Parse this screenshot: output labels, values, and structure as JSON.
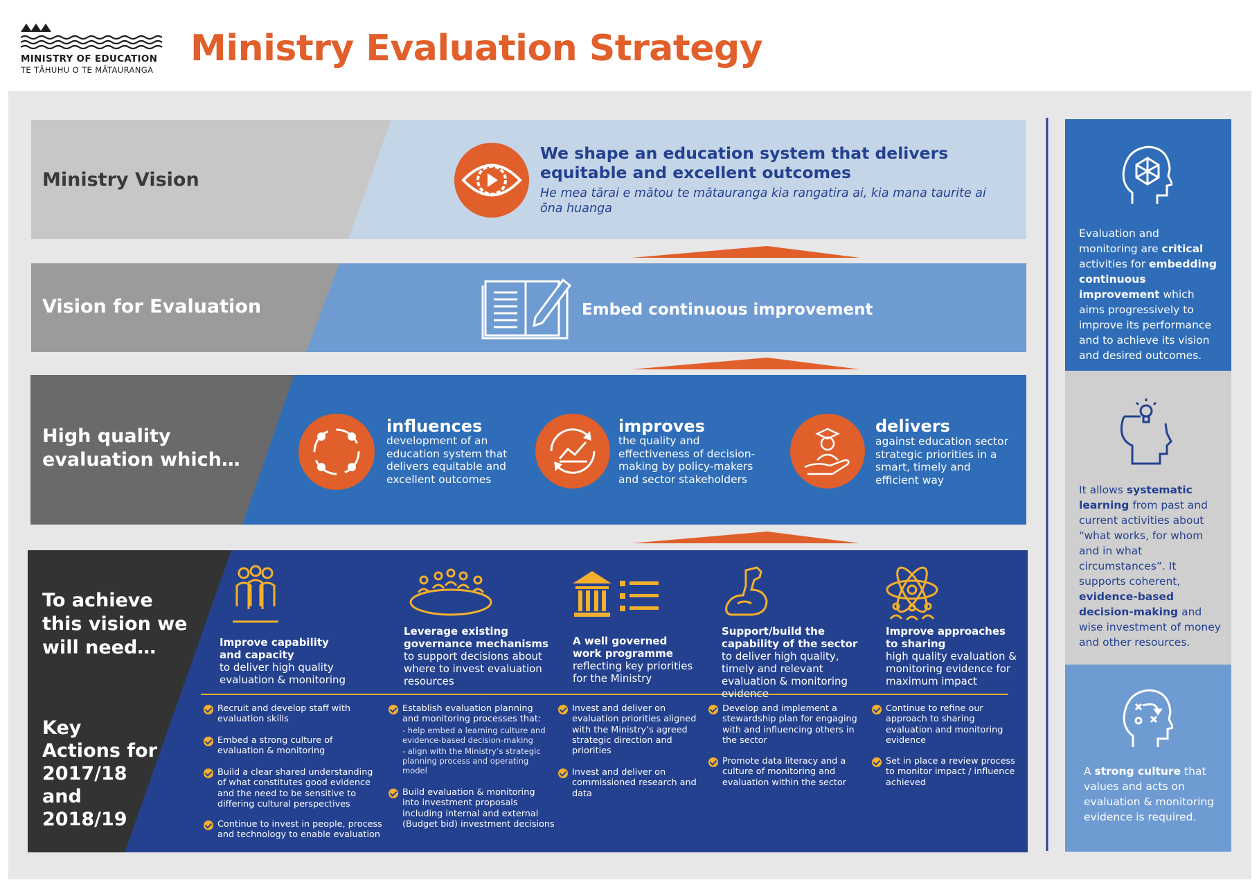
{
  "header": {
    "org_name": "MINISTRY OF EDUCATION",
    "org_name_maori": "TE TĀHUHU O TE MĀTAURANGA",
    "title": "Ministry Evaluation Strategy"
  },
  "colors": {
    "orange": "#e05f2a",
    "navy": "#24418f",
    "mid_blue": "#2f6db8",
    "light_blue": "#6f9bd3",
    "pale_blue": "#c5d5e8",
    "gold": "#f4b02c"
  },
  "rows": {
    "vision": {
      "label": "Ministry Vision",
      "icon": "eye-gear-icon",
      "text_en": "We shape an education system that delivers equitable and excellent outcomes",
      "text_mi": "He mea tārai e mātou te mātauranga kia rangatira ai, kia mana taurite ai ōna huanga"
    },
    "evaluation": {
      "label": "Vision for Evaluation",
      "icon": "open-book-pen-icon",
      "text": "Embed continuous improvement"
    },
    "quality": {
      "label_line1": "High quality",
      "label_line2": "evaluation which…",
      "items": [
        {
          "title": "influences",
          "desc": "development of an education system that delivers equitable and excellent outcomes",
          "icon": "cycle-icon"
        },
        {
          "title": "improves",
          "desc": "the quality and effectiveness of decision-making by policy-makers and sector stakeholders",
          "icon": "improvement-chart-icon"
        },
        {
          "title": "delivers",
          "desc": "against education sector strategic priorities in a smart, timely and efficient way",
          "icon": "graduate-hand-icon"
        }
      ]
    },
    "achieve": {
      "label_line1": "To achieve",
      "label_line2": "this vision we",
      "label_line3": "will need…",
      "actions_label_line1": "Key",
      "actions_label_line2": "Actions for",
      "actions_label_line3": "2017/18",
      "actions_label_line4": "and",
      "actions_label_line5": "2018/19",
      "pillars": [
        {
          "icon": "people-group-icon",
          "title_line1": "Improve capability",
          "title_line2": "and capacity",
          "desc": "to deliver high quality evaluation & monitoring",
          "actions": [
            "Recruit and develop staff with evaluation skills",
            "Embed a strong culture of evaluation & monitoring",
            "Build a clear shared understanding of what constitutes good evidence and the need to be sensitive to differing cultural perspectives",
            "Continue to invest in people, process and technology to enable evaluation"
          ]
        },
        {
          "icon": "meeting-table-icon",
          "title_line1": "Leverage existing",
          "title_line2": "governance mechanisms",
          "desc": "to support decisions about where to invest evaluation resources",
          "actions": [
            "Establish evaluation planning and monitoring processes that:",
            "Build evaluation & monitoring into investment proposals including internal and external (Budget bid) investment decisions"
          ],
          "sub_actions": [
            "- help embed a learning culture and evidence-based decision-making",
            "- align with the Ministry’s strategic planning process and operating model"
          ]
        },
        {
          "icon": "institution-list-icon",
          "title_line1": "A well governed",
          "title_line2": "work programme",
          "desc": "reflecting key priorities for the Ministry",
          "actions": [
            "Invest and deliver on evaluation priorities aligned with the Ministry’s agreed strategic direction and priorities",
            "Invest and deliver on commissioned research and data"
          ]
        },
        {
          "icon": "flexed-arm-icon",
          "title_line1": "Support/build the",
          "title_line2": "capability of the sector",
          "desc": "to deliver high quality, timely and relevant evaluation & monitoring evidence",
          "actions": [
            "Develop and implement a stewardship plan for engaging with and influencing others in the sector",
            "Promote data literacy and a culture of monitoring and evaluation within the sector"
          ]
        },
        {
          "icon": "atom-people-icon",
          "title_line1": "Improve approaches",
          "title_line2": "to sharing",
          "desc": "high quality evaluation & monitoring evidence for maximum impact",
          "actions": [
            "Continue to refine our approach to sharing evaluation and monitoring evidence",
            "Set in place a review process to monitor impact / influence achieved"
          ]
        }
      ]
    }
  },
  "sidebar": [
    {
      "icon": "head-network-icon",
      "parts": [
        {
          "t": "Evaluation and monitoring are ",
          "b": false
        },
        {
          "t": "critical",
          "b": true
        },
        {
          "t": " activities for ",
          "b": false
        },
        {
          "t": "embedding continuous improvement",
          "b": true
        },
        {
          "t": " which aims progressively to improve its performance and to achieve its vision and desired outcomes.",
          "b": false
        }
      ]
    },
    {
      "icon": "head-lightbulb-icon",
      "parts": [
        {
          "t": "It allows ",
          "b": false
        },
        {
          "t": "systematic learning",
          "b": true
        },
        {
          "t": " from past and current activities about “what works, for whom and in what circumstances”.  It supports coherent, ",
          "b": false
        },
        {
          "t": "evidence-based decision-making",
          "b": true
        },
        {
          "t": " and wise investment of money and other resources.",
          "b": false
        }
      ]
    },
    {
      "icon": "head-strategy-icon",
      "parts": [
        {
          "t": "A ",
          "b": false
        },
        {
          "t": "strong culture",
          "b": true
        },
        {
          "t": " that values and acts on evaluation & monitoring evidence is required.",
          "b": false
        }
      ]
    }
  ]
}
